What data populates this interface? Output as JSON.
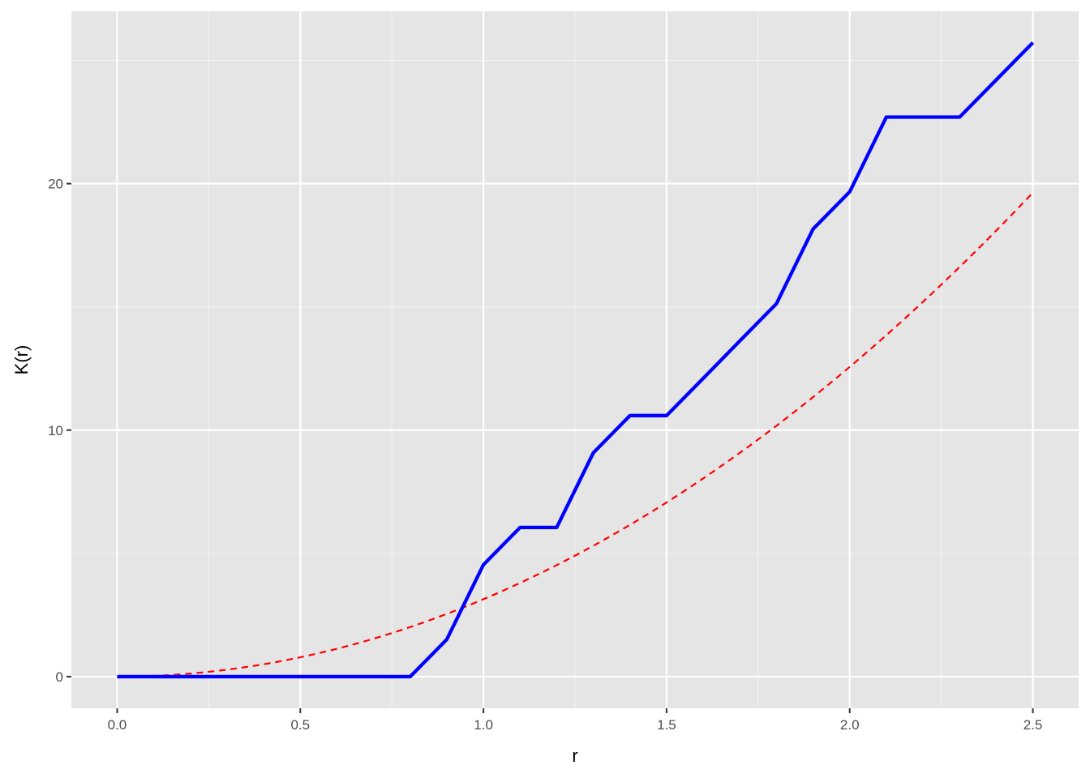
{
  "chart_data": {
    "type": "line",
    "title": "",
    "xlabel": "r",
    "ylabel": "K(r)",
    "xlim": [
      -0.125,
      2.625
    ],
    "ylim": [
      -1.285,
      26.99
    ],
    "grid": true,
    "x_ticks": [
      0.0,
      0.5,
      1.0,
      1.5,
      2.0,
      2.5
    ],
    "x_tick_labels": [
      "0.0",
      "0.5",
      "1.0",
      "1.5",
      "2.0",
      "2.5"
    ],
    "y_ticks": [
      0,
      10,
      20
    ],
    "y_tick_labels": [
      "0",
      "10",
      "20"
    ],
    "background": "#e5e5e5",
    "series": [
      {
        "style": "solid",
        "color": "#0000ff",
        "x": [
          0,
          0.1,
          0.2,
          0.3,
          0.4,
          0.5,
          0.6,
          0.7,
          0.8,
          0.9,
          1.0,
          1.1,
          1.2,
          1.3,
          1.4,
          1.5,
          1.6,
          1.7,
          1.8,
          1.9,
          2.0,
          2.1,
          2.2,
          2.3,
          2.4,
          2.5
        ],
        "y": [
          0,
          0,
          0,
          0,
          0,
          0,
          0,
          0,
          0,
          1.51,
          4.54,
          6.05,
          6.05,
          9.08,
          10.59,
          10.59,
          12.1,
          13.62,
          15.13,
          18.16,
          19.67,
          22.7,
          22.7,
          22.7,
          24.21,
          25.72
        ]
      },
      {
        "style": "dashed",
        "color": "#ff0000",
        "function": "pi*r^2",
        "x_range": [
          0,
          2.5
        ]
      }
    ]
  }
}
